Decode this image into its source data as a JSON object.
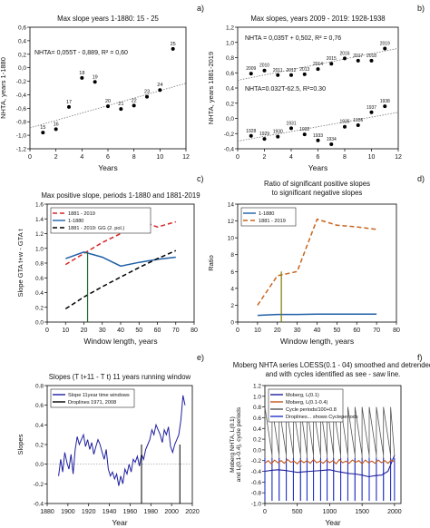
{
  "chart_data": [
    {
      "panel": "a)",
      "type": "scatter",
      "title": "Max slope years 1-1880: 15 - 25",
      "xlabel": "Years",
      "ylabel": "NHTA, years 1-1880",
      "xlim": [
        0,
        12
      ],
      "ylim": [
        -1.2,
        0.6
      ],
      "xticks": [
        0,
        2,
        4,
        6,
        8,
        10,
        12
      ],
      "yticks": [
        -1.2,
        -1.0,
        -0.8,
        -0.6,
        -0.4,
        -0.2,
        0.0,
        0.2,
        0.4,
        0.6
      ],
      "yticklabels": [
        "-1,2",
        "-1,0",
        "-0,8",
        "-0,6",
        "-0,4",
        "-0,2",
        "0,0",
        "0,2",
        "0,4",
        "0,6"
      ],
      "points": [
        {
          "x": 1,
          "y": -0.96,
          "label": "15"
        },
        {
          "x": 2,
          "y": -0.91,
          "label": "16"
        },
        {
          "x": 3,
          "y": -0.58,
          "label": "17"
        },
        {
          "x": 4,
          "y": -0.15,
          "label": "18"
        },
        {
          "x": 5,
          "y": -0.21,
          "label": "19"
        },
        {
          "x": 6,
          "y": -0.57,
          "label": "20"
        },
        {
          "x": 7,
          "y": -0.61,
          "label": "21"
        },
        {
          "x": 8,
          "y": -0.56,
          "label": "22"
        },
        {
          "x": 9,
          "y": -0.43,
          "label": "23"
        },
        {
          "x": 10,
          "y": -0.33,
          "label": "24"
        },
        {
          "x": 11,
          "y": 0.28,
          "label": "25"
        }
      ],
      "trend": {
        "x": [
          0,
          12
        ],
        "y": [
          -0.89,
          -0.23
        ]
      },
      "annotation": "NHTA= 0,055T - 0,889, R² = 0,60"
    },
    {
      "panel": "b)",
      "type": "scatter",
      "title": "Max slopes, years 2009 - 2019: 1928-1938",
      "xlabel": "Years",
      "ylabel": "NHTA, years 1881-2019",
      "xlim": [
        0,
        12
      ],
      "ylim": [
        -0.4,
        1.2
      ],
      "xticks": [
        0,
        2,
        4,
        6,
        8,
        10,
        12
      ],
      "yticks": [
        -0.4,
        -0.2,
        0.0,
        0.2,
        0.4,
        0.6,
        0.8,
        1.0,
        1.2
      ],
      "yticklabels": [
        "-0,4",
        "-0,2",
        "0,0",
        "0,2",
        "0,4",
        "0,6",
        "0,8",
        "1,0",
        "1,2"
      ],
      "series": [
        {
          "name": "2009-2019",
          "points": [
            {
              "x": 1,
              "y": 0.59,
              "label": "2009"
            },
            {
              "x": 2,
              "y": 0.63,
              "label": "2010"
            },
            {
              "x": 3,
              "y": 0.57,
              "label": "2011"
            },
            {
              "x": 4,
              "y": 0.57,
              "label": "2012"
            },
            {
              "x": 5,
              "y": 0.58,
              "label": "2013"
            },
            {
              "x": 6,
              "y": 0.65,
              "label": "2014"
            },
            {
              "x": 7,
              "y": 0.72,
              "label": "2015"
            },
            {
              "x": 8,
              "y": 0.79,
              "label": "2016"
            },
            {
              "x": 9,
              "y": 0.76,
              "label": "2017"
            },
            {
              "x": 10,
              "y": 0.76,
              "label": "2018"
            },
            {
              "x": 11,
              "y": 0.92,
              "label": "2019"
            }
          ],
          "trend": {
            "x": [
              0,
              12
            ],
            "y": [
              0.502,
              0.922
            ]
          },
          "annotation": "NHTA = 0,035T + 0,502, R² = 0,76"
        },
        {
          "name": "1928-1938",
          "points": [
            {
              "x": 1,
              "y": -0.23,
              "label": "1928"
            },
            {
              "x": 2,
              "y": -0.27,
              "label": "1929"
            },
            {
              "x": 3,
              "y": -0.24,
              "label": "1930"
            },
            {
              "x": 4,
              "y": -0.13,
              "label": "1931"
            },
            {
              "x": 5,
              "y": -0.21,
              "label": "1932"
            },
            {
              "x": 6,
              "y": -0.29,
              "label": "1933"
            },
            {
              "x": 7,
              "y": -0.34,
              "label": "1934"
            },
            {
              "x": 8,
              "y": -0.11,
              "label": "1935"
            },
            {
              "x": 9,
              "y": -0.09,
              "label": "1936"
            },
            {
              "x": 10,
              "y": 0.08,
              "label": "1937"
            },
            {
              "x": 11,
              "y": 0.16,
              "label": "1938"
            }
          ],
          "trend": {
            "x": [
              0,
              12
            ],
            "y": [
              -0.3,
              0.08
            ]
          },
          "annotation": "NHTA=0.032T-62.5, R²=0.30"
        }
      ]
    },
    {
      "panel": "c)",
      "type": "line",
      "title": "Max positive slope, periods 1-1880 and 1881-2019",
      "xlabel": "Window length, years",
      "ylabel": "Slope GTA t+w - GTA t",
      "xlim": [
        0,
        80
      ],
      "ylim": [
        0.0,
        1.6
      ],
      "xticks": [
        0,
        10,
        20,
        30,
        40,
        50,
        60,
        70,
        80
      ],
      "yticks": [
        0.0,
        0.2,
        0.4,
        0.6,
        0.8,
        1.0,
        1.2,
        1.4,
        1.6
      ],
      "yticklabels": [
        "0.0",
        "0.2",
        "0.4",
        "0.6",
        "0.8",
        "1.0",
        "1.2",
        "1.4",
        "1.6"
      ],
      "series": [
        {
          "name": "1881 - 2019",
          "color": "#d62728",
          "style": "dashed",
          "x": [
            10,
            20,
            30,
            40,
            50,
            60,
            70
          ],
          "y": [
            0.78,
            0.93,
            1.08,
            1.2,
            1.38,
            1.29,
            1.36
          ]
        },
        {
          "name": "1-1880",
          "color": "#1f5fa8",
          "style": "solid",
          "x": [
            10,
            20,
            30,
            40,
            50,
            60,
            70
          ],
          "y": [
            0.86,
            0.95,
            0.88,
            0.76,
            0.81,
            0.85,
            0.88
          ]
        },
        {
          "name": "1881 - 2019: GG (2. pol.)",
          "color": "#000000",
          "style": "dashed",
          "x": [
            10,
            20,
            30,
            40,
            50,
            60,
            70
          ],
          "y": [
            0.18,
            0.34,
            0.48,
            0.61,
            0.74,
            0.86,
            0.97
          ]
        }
      ],
      "droplines": [
        {
          "x": 22,
          "y": 0.95
        }
      ],
      "legend": "top-left"
    },
    {
      "panel": "d)",
      "type": "line",
      "title": "Ratio of significant positive slopes to significant negative slopes",
      "title_lines": [
        "Ratio of significant positive slopes",
        "to significant negative slopes"
      ],
      "xlabel": "Window length, years",
      "ylabel": "Ratio",
      "xlim": [
        0,
        80
      ],
      "ylim": [
        0,
        14
      ],
      "xticks": [
        0,
        10,
        20,
        30,
        40,
        50,
        60,
        70,
        80
      ],
      "yticks": [
        0,
        2,
        4,
        6,
        8,
        10,
        12,
        14
      ],
      "yticklabels": [
        "0",
        "2",
        "4",
        "6",
        "8",
        "10",
        "12",
        "14"
      ],
      "series": [
        {
          "name": "1-1880",
          "color": "#1f5fa8",
          "style": "solid",
          "x": [
            10,
            20,
            30,
            40,
            50,
            60,
            70
          ],
          "y": [
            0.8,
            0.9,
            0.9,
            0.95,
            0.95,
            0.95,
            0.95
          ]
        },
        {
          "name": "1881 - 2019",
          "color": "#c8641e",
          "style": "dashed",
          "x": [
            10,
            20,
            30,
            40,
            50,
            60,
            70
          ],
          "y": [
            2.0,
            5.5,
            6.0,
            12.2,
            11.5,
            11.3,
            11.0
          ]
        }
      ],
      "droplines": [
        {
          "x": 22,
          "y": 6.0,
          "color": "#7a7a00"
        }
      ],
      "legend": "top-left"
    },
    {
      "panel": "e)",
      "type": "line",
      "title": "Slopes (T t+11 - T t) 11 years running window",
      "xlabel": "Year",
      "ylabel": "Slopes",
      "xlim": [
        1880,
        2020
      ],
      "ylim": [
        -0.4,
        0.8
      ],
      "xticks": [
        1880,
        1900,
        1920,
        1940,
        1960,
        1980,
        2000,
        2020
      ],
      "yticks": [
        -0.4,
        -0.2,
        0.0,
        0.2,
        0.4,
        0.6,
        0.8
      ],
      "yticklabels": [
        "-0.4",
        "-0.2",
        "0.0",
        "0.2",
        "0.4",
        "0.6",
        "0.8"
      ],
      "series": [
        {
          "name": "Slope 11year time windows",
          "color": "#1f1fa0",
          "x": [
            1891,
            1893,
            1895,
            1897,
            1899,
            1901,
            1903,
            1905,
            1907,
            1909,
            1911,
            1913,
            1915,
            1917,
            1919,
            1921,
            1923,
            1925,
            1927,
            1929,
            1931,
            1933,
            1935,
            1937,
            1939,
            1941,
            1943,
            1945,
            1947,
            1949,
            1951,
            1953,
            1955,
            1957,
            1959,
            1961,
            1963,
            1965,
            1967,
            1969,
            1971,
            1973,
            1975,
            1977,
            1979,
            1981,
            1983,
            1985,
            1987,
            1989,
            1991,
            1993,
            1995,
            1997,
            1999,
            2001,
            2003,
            2005,
            2007,
            2009,
            2011,
            2013
          ],
          "y": [
            -0.12,
            0.05,
            -0.08,
            0.12,
            0.02,
            -0.05,
            0.1,
            -0.1,
            0.15,
            0.28,
            0.2,
            0.25,
            0.3,
            0.18,
            0.25,
            0.15,
            0.22,
            0.1,
            0.18,
            0.25,
            0.2,
            0.12,
            0.05,
            0.15,
            -0.05,
            -0.12,
            -0.08,
            -0.15,
            -0.1,
            -0.22,
            -0.12,
            -0.2,
            -0.05,
            -0.1,
            0.0,
            -0.08,
            0.05,
            0.02,
            0.08,
            -0.02,
            0.1,
            0.05,
            0.15,
            0.2,
            0.25,
            0.35,
            0.3,
            0.4,
            0.35,
            0.3,
            0.22,
            0.35,
            0.3,
            0.38,
            0.18,
            0.12,
            0.2,
            0.25,
            0.3,
            0.45,
            0.7,
            0.6
          ]
        }
      ],
      "droplines": [
        {
          "x": 1971,
          "label": "Droplines 1971, 2008"
        },
        {
          "x": 2008
        }
      ],
      "legend_labels": [
        "Slope 11year time windows",
        "Droplines 1971, 2008"
      ],
      "legend": "top-left"
    },
    {
      "panel": "f)",
      "type": "line",
      "title": "Moberg NHTA series LOESS(0.1 - 04) smoothed and detrended and with cycles identified as see - saw line.",
      "title_lines": [
        "Moberg NHTA series LOESS(0.1 - 04) smoothed and detrended",
        "and with cycles identified as see - saw line."
      ],
      "xlabel": "Year",
      "ylabel": "Moberg NHTA, L(0.1) and L(0.1-0.4), cycle periods",
      "ylabel_lines": [
        "Moberg NHTA, L(0.1)",
        "and L(0.1-0.4), cycle periods"
      ],
      "xlim": [
        0,
        2100
      ],
      "ylim": [
        -1.0,
        1.2
      ],
      "xticks": [
        0,
        500,
        1000,
        1500,
        2000
      ],
      "yticks": [
        -1.0,
        -0.8,
        -0.6,
        -0.4,
        -0.2,
        0.0,
        0.2,
        0.4,
        0.6,
        0.8,
        1.0,
        1.2
      ],
      "yticklabels": [
        "-1.0",
        "-0.8",
        "-0.6",
        "-0.4",
        "-0.2",
        "0.0",
        "0.2",
        "0.4",
        "0.6",
        "0.8",
        "1.0",
        "1.2"
      ],
      "cycle_starts": [
        0,
        110,
        220,
        330,
        440,
        550,
        650,
        750,
        860,
        960,
        1060,
        1170,
        1280,
        1390,
        1500,
        1610,
        1720,
        1830,
        1940,
        2000
      ],
      "cycle_peak": 0.8,
      "cycle_low": -0.95,
      "series": [
        {
          "name": "Moberg, L(0.1)",
          "color": "#1f1f9a",
          "x": [
            0,
            100,
            200,
            300,
            400,
            500,
            600,
            700,
            800,
            900,
            1000,
            1100,
            1200,
            1300,
            1400,
            1500,
            1600,
            1700,
            1800,
            1900,
            2000
          ],
          "y": [
            -0.4,
            -0.38,
            -0.37,
            -0.38,
            -0.4,
            -0.42,
            -0.41,
            -0.4,
            -0.39,
            -0.38,
            -0.37,
            -0.4,
            -0.42,
            -0.44,
            -0.45,
            -0.47,
            -0.5,
            -0.48,
            -0.47,
            -0.4,
            -0.1
          ]
        },
        {
          "name": "Moberg, L(0.1-0.4)",
          "color": "#c0561c",
          "x": [
            0,
            50,
            100,
            150,
            200,
            250,
            300,
            350,
            400,
            450,
            500,
            550,
            600,
            650,
            700,
            750,
            800,
            850,
            900,
            950,
            1000,
            1050,
            1100,
            1150,
            1200,
            1250,
            1300,
            1350,
            1400,
            1450,
            1500,
            1550,
            1600,
            1650,
            1700,
            1750,
            1800,
            1850,
            1900,
            1950,
            2000
          ],
          "y": [
            -0.25,
            -0.2,
            -0.26,
            -0.19,
            -0.24,
            -0.2,
            -0.25,
            -0.18,
            -0.23,
            -0.21,
            -0.26,
            -0.19,
            -0.24,
            -0.2,
            -0.25,
            -0.18,
            -0.24,
            -0.21,
            -0.25,
            -0.19,
            -0.24,
            -0.2,
            -0.26,
            -0.18,
            -0.24,
            -0.21,
            -0.25,
            -0.19,
            -0.23,
            -0.2,
            -0.26,
            -0.19,
            -0.24,
            -0.21,
            -0.25,
            -0.19,
            -0.24,
            -0.2,
            -0.25,
            -0.19,
            -0.22
          ]
        }
      ],
      "legend_labels": [
        "Moberg, L(0.1)",
        "Moberg, L(0.1-0.4)",
        "Cycle periods/100+0.8",
        "Droplines... shows Cycleperiods"
      ],
      "legend": "top-left"
    }
  ]
}
